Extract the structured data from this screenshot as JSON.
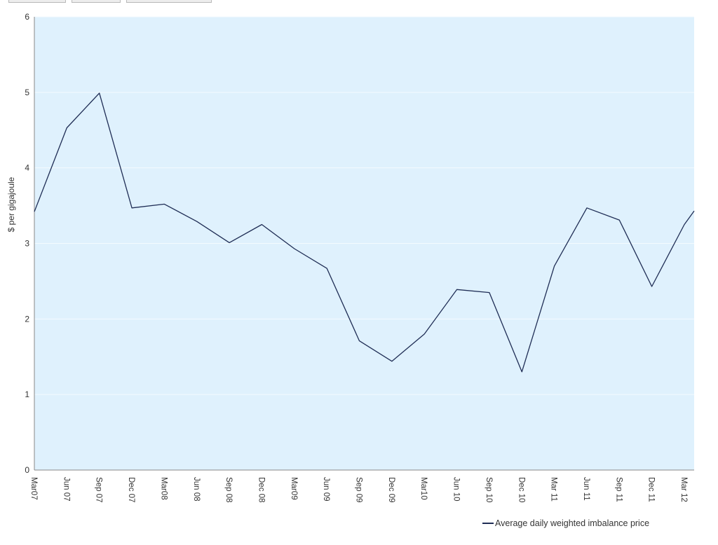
{
  "chart_data": {
    "type": "line",
    "title": "",
    "xlabel": "",
    "ylabel": "$ per gigajoule",
    "ylim": [
      0,
      6
    ],
    "yticks": [
      "0",
      "1",
      "2",
      "3",
      "4",
      "5",
      "6"
    ],
    "categories": [
      "Mar07",
      "Jun 07",
      "Sep 07",
      "Dec 07",
      "Mar08",
      "Jun 08",
      "Sep 08",
      "Dec 08",
      "Mar09",
      "Jun 09",
      "Sep 09",
      "Dec 09",
      "Mar10",
      "Jun 10",
      "Sep 10",
      "Dec 10",
      "Mar 11",
      "Jun 11",
      "Sep 11",
      "Dec 11",
      "Mar 12"
    ],
    "x_extends_past_last_category": true,
    "series": [
      {
        "name": "Average daily weighted imbalance price",
        "values": [
          3.42,
          4.53,
          4.99,
          3.47,
          3.52,
          3.29,
          3.01,
          3.25,
          2.93,
          2.67,
          1.71,
          1.44,
          1.8,
          2.39,
          2.35,
          1.3,
          2.7,
          3.47,
          3.31,
          2.43,
          3.25
        ],
        "end_value": 3.43
      }
    ],
    "grid": true,
    "legend_position": "bottom-right"
  },
  "colors": {
    "plot_background": "#dff1fd",
    "line": "#1f2d55",
    "gridline": "#f4fbff",
    "axis": "#888888"
  }
}
